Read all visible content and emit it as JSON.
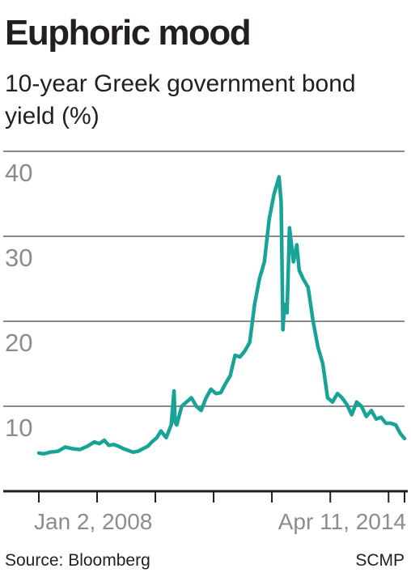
{
  "header": {
    "title": "Euphoric mood",
    "subtitle": "10-year Greek government bond yield (%)"
  },
  "footer": {
    "source": "Source: Bloomberg",
    "credit": "SCMP"
  },
  "colors": {
    "line": "#17a398",
    "grid": "#8a8a8a",
    "axis": "#231f20",
    "tick_label": "#8c8c8c",
    "text": "#231f20"
  },
  "chart_data": {
    "type": "line",
    "title": "Euphoric mood",
    "subtitle": "10-year Greek government bond yield (%)",
    "ylabel": "",
    "xlabel": "",
    "ylim": [
      0,
      40
    ],
    "yticks": [
      10,
      20,
      30,
      40
    ],
    "grid": true,
    "x_range": [
      "2008-01-02",
      "2014-04-11"
    ],
    "x_tick_labels": [
      {
        "date": "2008-01-02",
        "label": "Jan 2, 2008"
      },
      {
        "date": "2014-04-11",
        "label": "Apr 11, 2014"
      }
    ],
    "x_ticks": [
      "2008-01-02",
      "2009-01-01",
      "2010-01-01",
      "2011-01-01",
      "2012-01-01",
      "2013-01-01",
      "2014-01-01",
      "2014-04-11"
    ],
    "series": [
      {
        "x": [
          "2008-01-02",
          "2008-02-01",
          "2008-03-15",
          "2008-05-01",
          "2008-06-15",
          "2008-08-01",
          "2008-09-15",
          "2008-11-01",
          "2008-12-15",
          "2009-01-15",
          "2009-02-15",
          "2009-03-15",
          "2009-04-15",
          "2009-05-15",
          "2009-06-15",
          "2009-07-15",
          "2009-08-15",
          "2009-09-15",
          "2009-10-15",
          "2009-11-15",
          "2009-12-10",
          "2010-01-10",
          "2010-02-05",
          "2010-03-10",
          "2010-04-10",
          "2010-04-28",
          "2010-05-05",
          "2010-05-15",
          "2010-06-15",
          "2010-07-15",
          "2010-08-15",
          "2010-09-15",
          "2010-10-15",
          "2010-11-15",
          "2010-12-15",
          "2011-01-15",
          "2011-02-15",
          "2011-03-15",
          "2011-04-15",
          "2011-05-15",
          "2011-06-15",
          "2011-07-15",
          "2011-08-15",
          "2011-09-15",
          "2011-10-15",
          "2011-11-15",
          "2011-12-15",
          "2012-01-15",
          "2012-02-15",
          "2012-02-28",
          "2012-03-10",
          "2012-03-20",
          "2012-04-05",
          "2012-04-20",
          "2012-05-15",
          "2012-06-05",
          "2012-06-20",
          "2012-07-15",
          "2012-08-15",
          "2012-09-15",
          "2012-10-15",
          "2012-11-15",
          "2012-12-15",
          "2013-01-15",
          "2013-02-15",
          "2013-03-15",
          "2013-04-15",
          "2013-05-15",
          "2013-06-15",
          "2013-07-15",
          "2013-08-15",
          "2013-09-15",
          "2013-10-15",
          "2013-11-15",
          "2013-12-15",
          "2014-01-15",
          "2014-02-15",
          "2014-03-15",
          "2014-04-11"
        ],
        "values": [
          4.5,
          4.4,
          4.6,
          4.7,
          5.2,
          5.0,
          4.9,
          5.3,
          5.8,
          5.6,
          6.0,
          5.4,
          5.5,
          5.3,
          5.0,
          4.8,
          4.6,
          4.7,
          5.0,
          5.3,
          5.8,
          6.3,
          7.1,
          6.3,
          7.8,
          11.8,
          8.1,
          7.8,
          10.0,
          10.5,
          11.0,
          10.0,
          9.5,
          11.0,
          12.0,
          11.5,
          11.6,
          12.6,
          13.6,
          16.0,
          15.8,
          16.5,
          17.5,
          22.0,
          25.0,
          27.0,
          32.0,
          35.0,
          37.0,
          34.0,
          19.0,
          22.0,
          21.0,
          31.0,
          27.0,
          29.0,
          26.0,
          25.0,
          24.0,
          20.0,
          17.0,
          15.0,
          11.0,
          10.5,
          11.5,
          11.0,
          10.2,
          9.0,
          10.5,
          10.0,
          8.8,
          9.5,
          8.5,
          8.7,
          8.0,
          8.0,
          7.8,
          6.8,
          6.2
        ]
      }
    ]
  }
}
